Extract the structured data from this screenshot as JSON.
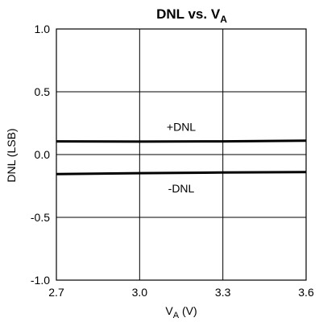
{
  "chart_data": {
    "type": "line",
    "title": "DNL vs. V",
    "title_sub": "A",
    "xlabel": "V",
    "xlabel_sub": "A",
    "xlabel_unit": " (V)",
    "ylabel": "DNL (LSB)",
    "xlim": [
      2.7,
      3.6
    ],
    "ylim": [
      -1.0,
      1.0
    ],
    "xticks": [
      2.7,
      3.0,
      3.3,
      3.6
    ],
    "xtick_labels": [
      "2.7",
      "3.0",
      "3.3",
      "3.6"
    ],
    "yticks": [
      1.0,
      0.5,
      0.0,
      -0.5,
      -1.0
    ],
    "ytick_labels": [
      "1.0",
      "0.5",
      "0.0",
      "-0.5",
      "-1.0"
    ],
    "grid": true,
    "series": [
      {
        "name": "+DNL",
        "x": [
          2.7,
          3.0,
          3.3,
          3.6
        ],
        "y": [
          0.105,
          0.103,
          0.105,
          0.11
        ]
      },
      {
        "name": "-DNL",
        "x": [
          2.7,
          3.0,
          3.3,
          3.6
        ],
        "y": [
          -0.155,
          -0.148,
          -0.143,
          -0.14
        ]
      }
    ],
    "annotations": [
      {
        "text": "+DNL",
        "x": 3.15,
        "y": 0.22
      },
      {
        "text": "-DNL",
        "x": 3.15,
        "y": -0.27
      }
    ]
  }
}
